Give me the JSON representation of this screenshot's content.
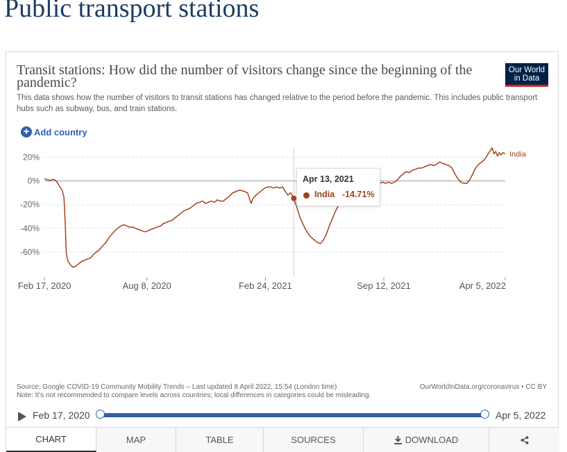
{
  "page": {
    "title": "Public transport stations"
  },
  "card": {
    "title": "Transit stations: How did the number of visitors change since the beginning of the pandemic?",
    "subtitle": "This data shows how the number of visitors to transit stations has changed relative to the period before the pandemic. This includes public transport hubs such as subway, bus, and train stations.",
    "logo_line1": "Our World",
    "logo_line2": "in Data",
    "add_country_label": "Add country",
    "source": "Source: Google COVID-19 Community Mobility Trends – Last updated 8 April 2022, 15:54 (London time)",
    "note": "Note: It's not recommended to compare levels across countries; local differences in categories could be misleading.",
    "credit": "OurWorldInData.org/coronavirus • CC BY"
  },
  "tooltip": {
    "date": "Apr 13, 2021",
    "entity": "India",
    "value": "-14.71%"
  },
  "timeline": {
    "start": "Feb 17, 2020",
    "end": "Apr 5, 2022"
  },
  "tabs": [
    {
      "label": "CHART",
      "icon": "",
      "active": true
    },
    {
      "label": "MAP",
      "icon": ""
    },
    {
      "label": "TABLE",
      "icon": ""
    },
    {
      "label": "SOURCES",
      "icon": ""
    },
    {
      "label": "DOWNLOAD",
      "icon": "download-icon"
    },
    {
      "label": "",
      "icon": "share-icon"
    }
  ],
  "colors": {
    "series": "#a2431b",
    "accent": "#3360a9",
    "title": "#1d3d63",
    "logo_bg": "#002147",
    "logo_bar": "#ce261e"
  },
  "chart_data": {
    "type": "line",
    "title": "Transit stations: How did the number of visitors change since the beginning of the pandemic?",
    "ylim": [
      -73,
      28
    ],
    "xlim": [
      "2020-02-17",
      "2022-04-05"
    ],
    "grid": "horizontal dashed",
    "y_ticks": [
      20,
      0,
      -20,
      -40,
      -60
    ],
    "y_tick_labels": [
      "20%",
      "0%",
      "-20%",
      "-40%",
      "-60%"
    ],
    "x_ticks": [
      "2020-02-17",
      "2020-08-08",
      "2021-02-24",
      "2021-09-12",
      "2022-04-05"
    ],
    "x_tick_labels": [
      "Feb 17, 2020",
      "Aug 8, 2020",
      "Feb 24, 2021",
      "Sep 12, 2021",
      "Apr 5, 2022"
    ],
    "highlight": {
      "x": "2021-04-13",
      "y": -14.71
    },
    "series": [
      {
        "name": "India",
        "color": "#a2431b",
        "points": [
          [
            "2020-02-17",
            2
          ],
          [
            "2020-02-22",
            1
          ],
          [
            "2020-02-27",
            0.5
          ],
          [
            "2020-03-03",
            1.5
          ],
          [
            "2020-03-08",
            0
          ],
          [
            "2020-03-13",
            -4
          ],
          [
            "2020-03-18",
            -8
          ],
          [
            "2020-03-21",
            -14
          ],
          [
            "2020-03-23",
            -35
          ],
          [
            "2020-03-25",
            -62
          ],
          [
            "2020-03-28",
            -68
          ],
          [
            "2020-04-01",
            -71
          ],
          [
            "2020-04-05",
            -73
          ],
          [
            "2020-04-10",
            -72
          ],
          [
            "2020-04-15",
            -70
          ],
          [
            "2020-04-20",
            -68
          ],
          [
            "2020-04-25",
            -67
          ],
          [
            "2020-04-30",
            -66
          ],
          [
            "2020-05-05",
            -65
          ],
          [
            "2020-05-10",
            -62
          ],
          [
            "2020-05-15",
            -60
          ],
          [
            "2020-05-20",
            -58
          ],
          [
            "2020-05-25",
            -55
          ],
          [
            "2020-05-31",
            -52
          ],
          [
            "2020-06-05",
            -48
          ],
          [
            "2020-06-10",
            -45
          ],
          [
            "2020-06-15",
            -42
          ],
          [
            "2020-06-20",
            -40
          ],
          [
            "2020-06-25",
            -38
          ],
          [
            "2020-06-30",
            -37
          ],
          [
            "2020-07-05",
            -38
          ],
          [
            "2020-07-10",
            -39
          ],
          [
            "2020-07-15",
            -39
          ],
          [
            "2020-07-20",
            -40
          ],
          [
            "2020-07-25",
            -41
          ],
          [
            "2020-07-30",
            -42
          ],
          [
            "2020-08-05",
            -43
          ],
          [
            "2020-08-10",
            -42
          ],
          [
            "2020-08-15",
            -41
          ],
          [
            "2020-08-20",
            -40
          ],
          [
            "2020-08-25",
            -39
          ],
          [
            "2020-08-31",
            -38
          ],
          [
            "2020-09-05",
            -36
          ],
          [
            "2020-09-10",
            -35
          ],
          [
            "2020-09-15",
            -34
          ],
          [
            "2020-09-20",
            -33
          ],
          [
            "2020-09-25",
            -31
          ],
          [
            "2020-09-30",
            -29
          ],
          [
            "2020-10-05",
            -27
          ],
          [
            "2020-10-10",
            -25
          ],
          [
            "2020-10-15",
            -24
          ],
          [
            "2020-10-20",
            -23
          ],
          [
            "2020-10-25",
            -21
          ],
          [
            "2020-10-30",
            -19
          ],
          [
            "2020-11-05",
            -18
          ],
          [
            "2020-11-10",
            -17
          ],
          [
            "2020-11-15",
            -19
          ],
          [
            "2020-11-20",
            -18
          ],
          [
            "2020-11-25",
            -17
          ],
          [
            "2020-11-30",
            -18
          ],
          [
            "2020-12-05",
            -16
          ],
          [
            "2020-12-10",
            -17
          ],
          [
            "2020-12-15",
            -17
          ],
          [
            "2020-12-20",
            -15
          ],
          [
            "2020-12-25",
            -13
          ],
          [
            "2020-12-31",
            -10
          ],
          [
            "2021-01-05",
            -9
          ],
          [
            "2021-01-10",
            -8
          ],
          [
            "2021-01-15",
            -8
          ],
          [
            "2021-01-20",
            -9
          ],
          [
            "2021-01-25",
            -10
          ],
          [
            "2021-01-31",
            -19
          ],
          [
            "2021-02-03",
            -15
          ],
          [
            "2021-02-08",
            -12
          ],
          [
            "2021-02-13",
            -10
          ],
          [
            "2021-02-18",
            -8
          ],
          [
            "2021-02-23",
            -6
          ],
          [
            "2021-02-28",
            -5
          ],
          [
            "2021-03-05",
            -5
          ],
          [
            "2021-03-10",
            -6
          ],
          [
            "2021-03-15",
            -5
          ],
          [
            "2021-03-20",
            -6
          ],
          [
            "2021-03-25",
            -5
          ],
          [
            "2021-03-30",
            -9
          ],
          [
            "2021-04-03",
            -12
          ],
          [
            "2021-04-08",
            -10
          ],
          [
            "2021-04-13",
            -14.71
          ],
          [
            "2021-04-18",
            -22
          ],
          [
            "2021-04-23",
            -30
          ],
          [
            "2021-04-28",
            -36
          ],
          [
            "2021-05-03",
            -41
          ],
          [
            "2021-05-08",
            -45
          ],
          [
            "2021-05-13",
            -48
          ],
          [
            "2021-05-18",
            -50
          ],
          [
            "2021-05-23",
            -52
          ],
          [
            "2021-05-28",
            -53
          ],
          [
            "2021-06-02",
            -50
          ],
          [
            "2021-06-07",
            -45
          ],
          [
            "2021-06-12",
            -38
          ],
          [
            "2021-06-17",
            -32
          ],
          [
            "2021-06-22",
            -26
          ],
          [
            "2021-06-27",
            -21
          ],
          [
            "2021-07-02",
            -16
          ],
          [
            "2021-07-07",
            -13
          ],
          [
            "2021-07-12",
            -12
          ],
          [
            "2021-07-17",
            -13
          ],
          [
            "2021-07-22",
            -10
          ],
          [
            "2021-07-27",
            -7
          ],
          [
            "2021-08-01",
            -5
          ],
          [
            "2021-08-06",
            -4
          ],
          [
            "2021-08-11",
            -3
          ],
          [
            "2021-08-16",
            -4
          ],
          [
            "2021-08-21",
            -2
          ],
          [
            "2021-08-26",
            -1
          ],
          [
            "2021-08-31",
            -3
          ],
          [
            "2021-09-05",
            -2
          ],
          [
            "2021-09-10",
            -1
          ],
          [
            "2021-09-15",
            -2
          ],
          [
            "2021-09-20",
            -1
          ],
          [
            "2021-09-25",
            -2
          ],
          [
            "2021-09-30",
            -1
          ],
          [
            "2021-10-05",
            1
          ],
          [
            "2021-10-10",
            4
          ],
          [
            "2021-10-15",
            6
          ],
          [
            "2021-10-20",
            8
          ],
          [
            "2021-10-25",
            7
          ],
          [
            "2021-10-30",
            9
          ],
          [
            "2021-11-05",
            10
          ],
          [
            "2021-11-10",
            11
          ],
          [
            "2021-11-15",
            11
          ],
          [
            "2021-11-20",
            12
          ],
          [
            "2021-11-25",
            13
          ],
          [
            "2021-11-30",
            14
          ],
          [
            "2021-12-05",
            13
          ],
          [
            "2021-12-10",
            14
          ],
          [
            "2021-12-15",
            16
          ],
          [
            "2021-12-20",
            15
          ],
          [
            "2021-12-25",
            14
          ],
          [
            "2021-12-31",
            13
          ],
          [
            "2022-01-05",
            11
          ],
          [
            "2022-01-10",
            6
          ],
          [
            "2022-01-15",
            2
          ],
          [
            "2022-01-20",
            -1
          ],
          [
            "2022-01-25",
            -2
          ],
          [
            "2022-01-30",
            -2
          ],
          [
            "2022-02-04",
            1
          ],
          [
            "2022-02-09",
            6
          ],
          [
            "2022-02-14",
            11
          ],
          [
            "2022-02-19",
            14
          ],
          [
            "2022-02-24",
            16
          ],
          [
            "2022-03-01",
            18
          ],
          [
            "2022-03-06",
            22
          ],
          [
            "2022-03-11",
            26
          ],
          [
            "2022-03-14",
            28
          ],
          [
            "2022-03-17",
            23
          ],
          [
            "2022-03-20",
            25
          ],
          [
            "2022-03-23",
            21
          ],
          [
            "2022-03-26",
            24
          ],
          [
            "2022-03-29",
            22
          ],
          [
            "2022-04-01",
            24
          ],
          [
            "2022-04-05",
            23
          ]
        ]
      }
    ]
  }
}
